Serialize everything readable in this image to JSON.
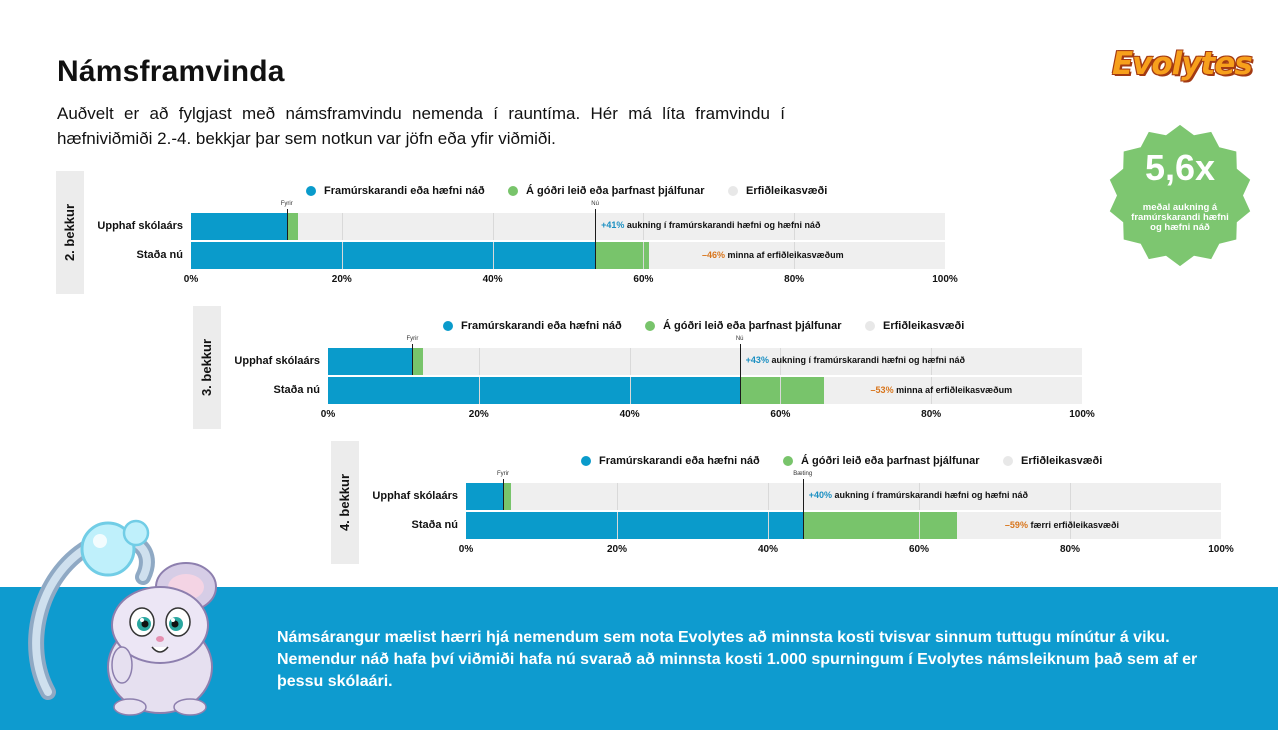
{
  "title": "Námsframvinda",
  "intro": "Auðvelt er að fylgjast með námsframvindu nemenda í rauntíma. Hér má líta framvindu í hæfniviðmiði 2.-4. bekkjar þar sem notkun var jöfn eða yfir viðmiði.",
  "logo": {
    "text": "Evolytes"
  },
  "badge": {
    "value": "5,6x",
    "caption": "meðal aukning á framúrskarandi hæfni og hæfni náð"
  },
  "colors": {
    "blue": "#0a9bcb",
    "green": "#78c46b",
    "grey": "#efefef",
    "badge": "#7dc670",
    "footer": "#0e9bcf"
  },
  "legend": [
    "Framúrskarandi eða hæfni náð",
    "Á góðri leið eða þarfnast þjálfunar",
    "Erfiðleikasvæði"
  ],
  "row_labels": [
    "Upphaf skólaárs",
    "Staða nú"
  ],
  "ticks": [
    "0%",
    "20%",
    "40%",
    "60%",
    "80%",
    "100%"
  ],
  "chart_data": [
    {
      "type": "bar",
      "grade": "2. bekkur",
      "categories": [
        "Upphaf skólaárs",
        "Staða nú"
      ],
      "series": [
        {
          "name": "Framúrskarandi eða hæfni náð",
          "values": [
            12.7,
            53.6
          ]
        },
        {
          "name": "Á góðri leið eða þarfnast þjálfunar",
          "values": [
            1.5,
            7.1
          ]
        },
        {
          "name": "Erfiðleikasvæði",
          "values": [
            85.8,
            39.3
          ]
        }
      ],
      "xlim": [
        0,
        100
      ],
      "markers": [
        {
          "label": "Fyrir",
          "value": 12.7,
          "row": 0
        },
        {
          "label": "Nú",
          "value": 53.6,
          "row": 1
        }
      ],
      "annotations": [
        {
          "value": "+41%",
          "text": " aukning í framúrskarandi hæfni og hæfni náð"
        },
        {
          "value": "–46%",
          "text": " minna af erfiðleikasvæðum"
        }
      ]
    },
    {
      "type": "bar",
      "grade": "3. bekkur",
      "categories": [
        "Upphaf skólaárs",
        "Staða nú"
      ],
      "series": [
        {
          "name": "Framúrskarandi eða hæfni náð",
          "values": [
            11.2,
            54.6
          ]
        },
        {
          "name": "Á góðri leið eða þarfnast þjálfunar",
          "values": [
            1.4,
            11.2
          ]
        },
        {
          "name": "Erfiðleikasvæði",
          "values": [
            87.4,
            34.2
          ]
        }
      ],
      "xlim": [
        0,
        100
      ],
      "markers": [
        {
          "label": "Fyrir",
          "value": 11.2,
          "row": 0
        },
        {
          "label": "Nú",
          "value": 54.6,
          "row": 1
        }
      ],
      "annotations": [
        {
          "value": "+43%",
          "text": " aukning í framúrskarandi hæfni og hæfni náð"
        },
        {
          "value": "–53%",
          "text": " minna af erfiðleikasvæðum"
        }
      ]
    },
    {
      "type": "bar",
      "grade": "4. bekkur",
      "categories": [
        "Upphaf skólaárs",
        "Staða nú"
      ],
      "series": [
        {
          "name": "Framúrskarandi eða hæfni náð",
          "values": [
            4.9,
            44.6
          ]
        },
        {
          "name": "Á góðri leið eða þarfnast þjálfunar",
          "values": [
            1.0,
            20.5
          ]
        },
        {
          "name": "Erfiðleikasvæði",
          "values": [
            94.1,
            34.9
          ]
        }
      ],
      "xlim": [
        0,
        100
      ],
      "markers": [
        {
          "label": "Fyrir",
          "value": 4.9,
          "row": 0
        },
        {
          "label": "Bæting",
          "value": 44.6,
          "row": 1
        }
      ],
      "annotations": [
        {
          "value": "+40%",
          "text": " aukning í framúrskarandi hæfni og hæfni náð"
        },
        {
          "value": "–59%",
          "text": " færri erfiðleikasvæði"
        }
      ]
    }
  ],
  "footer": {
    "text": "Námsárangur mælist hærri hjá nemendum sem nota Evolytes að minnsta kosti tvisvar sinnum tuttugu mínútur á viku. Nemendur náð hafa því viðmiði hafa nú svarað að minnsta kosti 1.000 spurningum í Evolytes námsleiknum það sem af er þessu skólaári."
  }
}
